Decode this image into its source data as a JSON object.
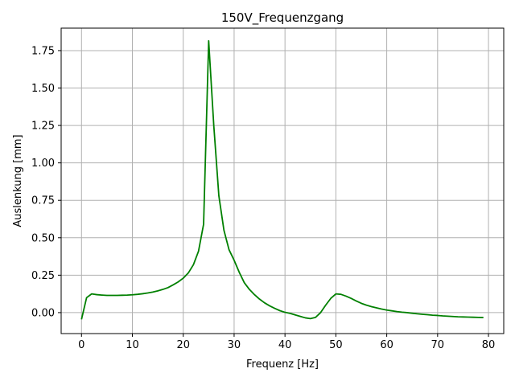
{
  "chart_data": {
    "type": "line",
    "title": "150V_Frequenzgang",
    "xlabel": "Frequenz [Hz]",
    "ylabel": "Auslenkung  [mm]",
    "xlim": [
      -4,
      83
    ],
    "ylim": [
      -0.14,
      1.9
    ],
    "xticks": [
      0,
      10,
      20,
      30,
      40,
      50,
      60,
      70,
      80
    ],
    "yticks": [
      0.0,
      0.25,
      0.5,
      0.75,
      1.0,
      1.25,
      1.5,
      1.75
    ],
    "xtick_labels": [
      "0",
      "10",
      "20",
      "30",
      "40",
      "50",
      "60",
      "70",
      "80"
    ],
    "ytick_labels": [
      "0.00",
      "0.25",
      "0.50",
      "0.75",
      "1.00",
      "1.25",
      "1.50",
      "1.75"
    ],
    "grid": true,
    "series": [
      {
        "color": "#008000",
        "x": [
          0,
          1,
          2,
          3,
          4,
          5,
          6,
          7,
          8,
          9,
          10,
          11,
          12,
          13,
          14,
          15,
          16,
          17,
          18,
          19,
          20,
          21,
          22,
          23,
          24,
          25,
          26,
          27,
          28,
          29,
          30,
          31,
          32,
          33,
          34,
          35,
          36,
          37,
          38,
          39,
          40,
          41,
          42,
          43,
          44,
          45,
          46,
          47,
          48,
          49,
          50,
          51,
          52,
          53,
          54,
          55,
          56,
          57,
          58,
          59,
          60,
          61,
          62,
          63,
          64,
          65,
          66,
          67,
          68,
          69,
          70,
          71,
          72,
          73,
          74,
          75,
          76,
          77,
          78,
          79
        ],
        "y": [
          -0.045,
          0.1,
          0.125,
          0.12,
          0.117,
          0.115,
          0.115,
          0.115,
          0.116,
          0.117,
          0.119,
          0.122,
          0.126,
          0.131,
          0.137,
          0.145,
          0.155,
          0.167,
          0.185,
          0.205,
          0.23,
          0.265,
          0.32,
          0.41,
          0.59,
          1.815,
          1.25,
          0.78,
          0.55,
          0.42,
          0.35,
          0.27,
          0.2,
          0.155,
          0.12,
          0.09,
          0.065,
          0.045,
          0.028,
          0.013,
          0.002,
          -0.005,
          -0.015,
          -0.025,
          -0.035,
          -0.04,
          -0.032,
          0.0,
          0.05,
          0.095,
          0.125,
          0.122,
          0.11,
          0.095,
          0.078,
          0.062,
          0.05,
          0.04,
          0.032,
          0.024,
          0.017,
          0.012,
          0.007,
          0.003,
          0.0,
          -0.004,
          -0.008,
          -0.011,
          -0.014,
          -0.017,
          -0.019,
          -0.022,
          -0.024,
          -0.026,
          -0.028,
          -0.029,
          -0.03,
          -0.031,
          -0.032,
          -0.033
        ]
      }
    ]
  }
}
